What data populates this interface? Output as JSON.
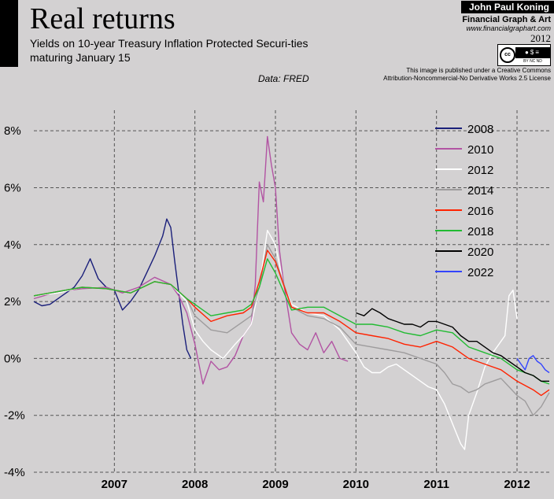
{
  "header": {
    "title": "Real returns",
    "subtitle": "Yields on 10-year Treasury Inflation Protected Securi-ties maturing January 15",
    "source": "Data: FRED"
  },
  "credit": {
    "author": "John Paul Koning",
    "brand": "Financial Graph & Art",
    "website": "www.financialgraphart.com",
    "year": "2012",
    "cc_logo": "cc",
    "cc_icons": "BY NC ND",
    "license_line1": "This image is published under a Creative Commons",
    "license_line2": "Attribution-Noncommercial-No Derivative Works 2.5 License"
  },
  "chart_data": {
    "type": "line",
    "title": "Real returns",
    "xlabel": "",
    "ylabel": "",
    "xlim": [
      2006.0,
      2012.42
    ],
    "ylim": [
      -4,
      9
    ],
    "yticks": [
      8,
      6,
      4,
      2,
      0,
      -2,
      -4
    ],
    "ytick_labels": [
      "8%",
      "6%",
      "4%",
      "2%",
      "0%",
      "-2%",
      "-4%"
    ],
    "xticks": [
      2007,
      2008,
      2009,
      2010,
      2011,
      2012
    ],
    "xtick_labels": [
      "2007",
      "2008",
      "2009",
      "2010",
      "2011",
      "2012"
    ],
    "grid": true,
    "series": [
      {
        "name": "2008",
        "color": "#1a1f7a",
        "x": [
          2006.0,
          2006.1,
          2006.2,
          2006.35,
          2006.5,
          2006.6,
          2006.7,
          2006.8,
          2006.9,
          2007.0,
          2007.1,
          2007.2,
          2007.3,
          2007.4,
          2007.5,
          2007.6,
          2007.65,
          2007.7,
          2007.75,
          2007.8,
          2007.85,
          2007.9,
          2007.95
        ],
        "y": [
          2.0,
          1.85,
          1.9,
          2.2,
          2.5,
          2.9,
          3.5,
          2.8,
          2.5,
          2.4,
          1.7,
          2.0,
          2.4,
          3.0,
          3.6,
          4.3,
          4.9,
          4.6,
          3.4,
          2.3,
          1.2,
          0.3,
          0.0
        ]
      },
      {
        "name": "2010",
        "color": "#b254a3",
        "x": [
          2006.0,
          2006.3,
          2006.6,
          2006.9,
          2007.1,
          2007.3,
          2007.5,
          2007.7,
          2007.8,
          2007.9,
          2008.0,
          2008.05,
          2008.1,
          2008.2,
          2008.3,
          2008.4,
          2008.5,
          2008.6,
          2008.7,
          2008.75,
          2008.8,
          2008.85,
          2008.9,
          2008.95,
          2009.0,
          2009.05,
          2009.1,
          2009.2,
          2009.3,
          2009.4,
          2009.5,
          2009.6,
          2009.7,
          2009.8,
          2009.9
        ],
        "y": [
          2.1,
          2.35,
          2.45,
          2.5,
          2.3,
          2.5,
          2.85,
          2.6,
          2.2,
          1.6,
          0.5,
          -0.2,
          -0.9,
          -0.1,
          -0.4,
          -0.3,
          0.1,
          0.8,
          1.2,
          2.6,
          6.2,
          5.5,
          7.8,
          6.8,
          6.0,
          3.8,
          2.7,
          0.9,
          0.5,
          0.3,
          0.9,
          0.2,
          0.6,
          0.0,
          -0.1
        ]
      },
      {
        "name": "2012",
        "color": "#ffffff",
        "x": [
          2006.0,
          2006.3,
          2006.6,
          2006.9,
          2007.2,
          2007.5,
          2007.7,
          2007.9,
          2008.0,
          2008.1,
          2008.2,
          2008.35,
          2008.5,
          2008.6,
          2008.7,
          2008.8,
          2008.9,
          2009.0,
          2009.1,
          2009.2,
          2009.4,
          2009.6,
          2009.8,
          2010.0,
          2010.1,
          2010.2,
          2010.3,
          2010.4,
          2010.5,
          2010.6,
          2010.7,
          2010.8,
          2010.9,
          2011.0,
          2011.1,
          2011.2,
          2011.3,
          2011.35,
          2011.4,
          2011.5,
          2011.6,
          2011.7,
          2011.8,
          2011.85,
          2011.9,
          2011.95,
          2012.0
        ],
        "y": [
          2.2,
          2.3,
          2.5,
          2.45,
          2.3,
          2.7,
          2.6,
          2.0,
          1.0,
          0.6,
          0.3,
          0.0,
          0.5,
          0.8,
          1.2,
          2.5,
          4.5,
          4.0,
          2.6,
          1.9,
          1.6,
          1.5,
          1.0,
          0.2,
          -0.3,
          -0.5,
          -0.5,
          -0.3,
          -0.2,
          -0.4,
          -0.6,
          -0.8,
          -1.0,
          -1.1,
          -1.6,
          -2.3,
          -3.0,
          -3.2,
          -2.0,
          -1.2,
          -0.3,
          0.2,
          0.6,
          0.8,
          2.2,
          2.4,
          1.4
        ]
      },
      {
        "name": "2014",
        "color": "#9e9c9d",
        "x": [
          2006.0,
          2006.3,
          2006.6,
          2006.9,
          2007.2,
          2007.5,
          2007.7,
          2007.9,
          2008.0,
          2008.2,
          2008.4,
          2008.6,
          2008.7,
          2008.8,
          2008.9,
          2009.0,
          2009.2,
          2009.4,
          2009.6,
          2009.8,
          2010.0,
          2010.2,
          2010.4,
          2010.6,
          2010.8,
          2011.0,
          2011.1,
          2011.2,
          2011.3,
          2011.4,
          2011.5,
          2011.6,
          2011.7,
          2011.8,
          2011.9,
          2012.0,
          2012.1,
          2012.2,
          2012.3,
          2012.4
        ],
        "y": [
          2.2,
          2.35,
          2.5,
          2.45,
          2.3,
          2.7,
          2.6,
          2.1,
          1.5,
          1.0,
          0.9,
          1.3,
          1.5,
          2.5,
          4.0,
          3.5,
          1.8,
          1.5,
          1.4,
          1.1,
          0.5,
          0.4,
          0.3,
          0.2,
          0.0,
          -0.2,
          -0.5,
          -0.9,
          -1.0,
          -1.2,
          -1.1,
          -0.9,
          -0.8,
          -0.7,
          -1.0,
          -1.3,
          -1.5,
          -2.0,
          -1.7,
          -1.2
        ]
      },
      {
        "name": "2016",
        "color": "#ff2200",
        "x": [
          2006.0,
          2006.3,
          2006.6,
          2006.9,
          2007.2,
          2007.5,
          2007.7,
          2007.9,
          2008.0,
          2008.2,
          2008.4,
          2008.6,
          2008.7,
          2008.8,
          2008.9,
          2009.0,
          2009.2,
          2009.4,
          2009.6,
          2009.8,
          2010.0,
          2010.2,
          2010.4,
          2010.6,
          2010.8,
          2011.0,
          2011.2,
          2011.4,
          2011.6,
          2011.8,
          2012.0,
          2012.2,
          2012.3,
          2012.4
        ],
        "y": [
          2.2,
          2.35,
          2.5,
          2.45,
          2.3,
          2.7,
          2.6,
          2.1,
          1.8,
          1.3,
          1.5,
          1.6,
          1.8,
          2.7,
          3.8,
          3.4,
          1.8,
          1.6,
          1.6,
          1.3,
          0.9,
          0.8,
          0.7,
          0.5,
          0.4,
          0.6,
          0.4,
          0.0,
          -0.2,
          -0.4,
          -0.8,
          -1.1,
          -1.3,
          -1.1
        ]
      },
      {
        "name": "2018",
        "color": "#22bb33",
        "x": [
          2006.0,
          2006.3,
          2006.6,
          2006.9,
          2007.2,
          2007.5,
          2007.7,
          2007.9,
          2008.0,
          2008.2,
          2008.4,
          2008.6,
          2008.7,
          2008.8,
          2008.9,
          2009.0,
          2009.2,
          2009.4,
          2009.6,
          2009.8,
          2010.0,
          2010.2,
          2010.4,
          2010.6,
          2010.8,
          2011.0,
          2011.2,
          2011.4,
          2011.6,
          2011.8,
          2012.0,
          2012.2,
          2012.3,
          2012.4
        ],
        "y": [
          2.2,
          2.35,
          2.5,
          2.45,
          2.3,
          2.7,
          2.6,
          2.1,
          1.9,
          1.5,
          1.6,
          1.7,
          1.9,
          2.5,
          3.5,
          3.0,
          1.7,
          1.8,
          1.8,
          1.5,
          1.2,
          1.2,
          1.1,
          0.9,
          0.8,
          1.0,
          0.9,
          0.4,
          0.2,
          0.0,
          -0.4,
          -0.6,
          -0.8,
          -0.9
        ]
      },
      {
        "name": "2020",
        "color": "#000000",
        "x": [
          2010.0,
          2010.1,
          2010.2,
          2010.3,
          2010.4,
          2010.5,
          2010.6,
          2010.7,
          2010.8,
          2010.9,
          2011.0,
          2011.1,
          2011.2,
          2011.3,
          2011.4,
          2011.5,
          2011.6,
          2011.7,
          2011.8,
          2011.9,
          2012.0,
          2012.1,
          2012.2,
          2012.3,
          2012.4
        ],
        "y": [
          1.6,
          1.5,
          1.75,
          1.6,
          1.4,
          1.3,
          1.2,
          1.2,
          1.1,
          1.3,
          1.3,
          1.2,
          1.1,
          0.8,
          0.6,
          0.6,
          0.4,
          0.2,
          0.1,
          -0.1,
          -0.3,
          -0.5,
          -0.6,
          -0.8,
          -0.8
        ]
      },
      {
        "name": "2022",
        "color": "#3344ff",
        "x": [
          2012.0,
          2012.05,
          2012.1,
          2012.15,
          2012.2,
          2012.25,
          2012.3,
          2012.35,
          2012.4
        ],
        "y": [
          0.0,
          -0.2,
          -0.4,
          0.0,
          0.1,
          -0.1,
          -0.2,
          -0.4,
          -0.5
        ]
      }
    ]
  }
}
